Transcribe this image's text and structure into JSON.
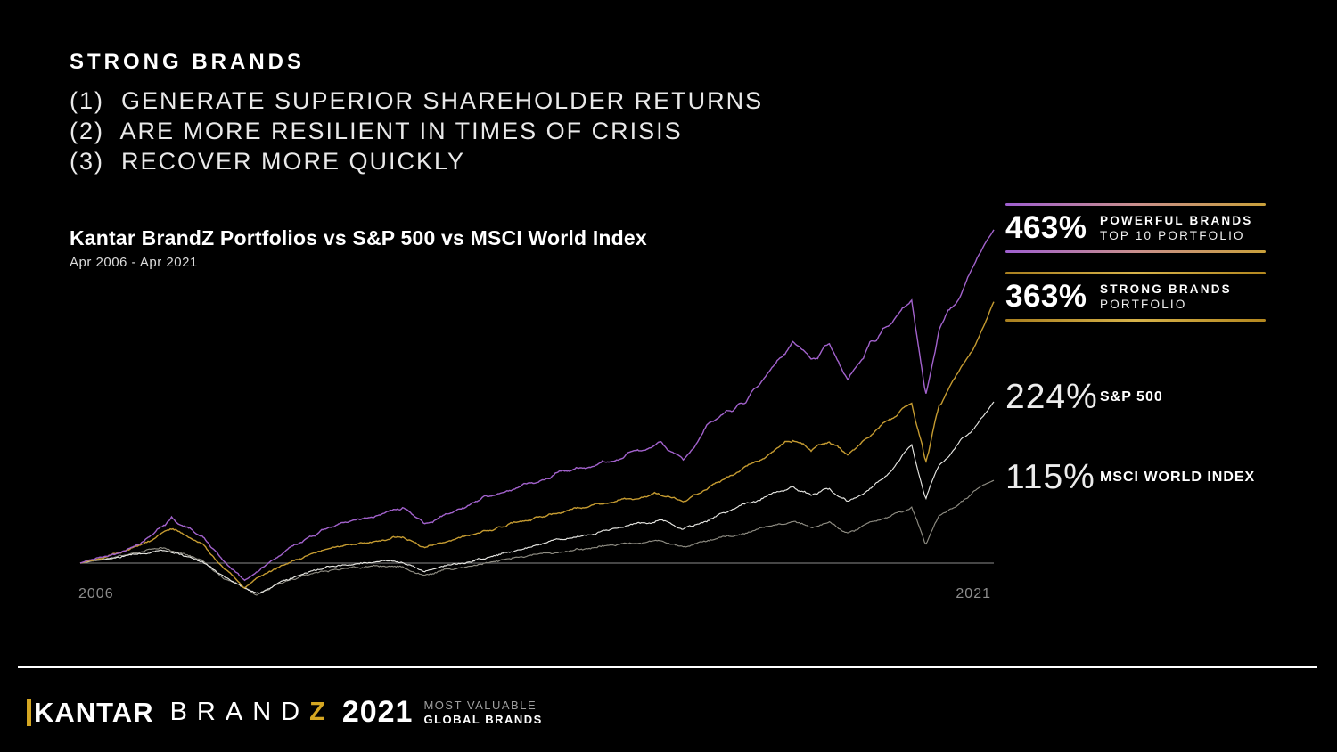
{
  "header": {
    "title": "STRONG BRANDS",
    "points": [
      "(1)  GENERATE SUPERIOR SHAREHOLDER RETURNS",
      "(2)  ARE MORE RESILIENT IN TIMES OF CRISIS",
      "(3)  RECOVER MORE QUICKLY"
    ]
  },
  "chart": {
    "title": "Kantar BrandZ Portfolios vs S&P 500 vs MSCI World Index",
    "subtitle": "Apr 2006 - Apr 2021",
    "x_start_label": "2006",
    "x_end_label": "2021"
  },
  "legend": {
    "items": [
      {
        "value": "463%",
        "label_line1": "POWERFUL BRANDS",
        "label_line2": "TOP 10 PORTFOLIO",
        "rule_colors": [
          "#9e5fd0",
          "#c98f8d",
          "#c9a03a"
        ]
      },
      {
        "value": "363%",
        "label_line1": "STRONG BRANDS",
        "label_line2": "PORTFOLIO",
        "rule_colors": [
          "#a97f1f",
          "#d6b24a",
          "#b3871f"
        ]
      },
      {
        "value": "224%",
        "label_line1": "S&P 500",
        "label_line2": "",
        "rule_colors": null
      },
      {
        "value": "115%",
        "label_line1": "MSCI WORLD INDEX",
        "label_line2": "",
        "rule_colors": null
      }
    ]
  },
  "footer": {
    "kantar": "KANTAR",
    "brand_letters": "BRAND",
    "brand_z": "Z",
    "year": "2021",
    "tagline_top": "MOST VALUABLE",
    "tagline_bottom": "GLOBAL BRANDS"
  },
  "colors": {
    "background": "#000000",
    "accent_gold": "#c9a03a",
    "accent_purple": "#a262cc",
    "axis_label": "#8c8c8c",
    "baseline": "#6f6f6f"
  },
  "chart_data": {
    "type": "line",
    "title": "Kantar BrandZ Portfolios vs S&P 500 vs MSCI World Index",
    "x_unit": "years since Apr 2006",
    "x_domain": [
      0,
      15
    ],
    "x_tick_labels": [
      "2006",
      "2021"
    ],
    "y_unit": "percent return since Apr 2006",
    "ylim": [
      -50,
      480
    ],
    "grid": false,
    "legend_position": "right",
    "series": [
      {
        "name": "Powerful Brands Top 10 Portfolio",
        "final_value_pct": 463,
        "color": "#a262cc",
        "points": [
          [
            0,
            0
          ],
          [
            0.3,
            8
          ],
          [
            0.6,
            15
          ],
          [
            1,
            30
          ],
          [
            1.2,
            42
          ],
          [
            1.5,
            62
          ],
          [
            1.7,
            50
          ],
          [
            2,
            38
          ],
          [
            2.35,
            5
          ],
          [
            2.7,
            -22
          ],
          [
            3,
            -5
          ],
          [
            3.5,
            25
          ],
          [
            4,
            45
          ],
          [
            4.5,
            60
          ],
          [
            5,
            72
          ],
          [
            5.3,
            77
          ],
          [
            5.65,
            55
          ],
          [
            6,
            68
          ],
          [
            6.5,
            85
          ],
          [
            7,
            100
          ],
          [
            7.5,
            113
          ],
          [
            8,
            127
          ],
          [
            8.5,
            138
          ],
          [
            9,
            148
          ],
          [
            9.5,
            165
          ],
          [
            9.9,
            143
          ],
          [
            10.35,
            197
          ],
          [
            10.9,
            220
          ],
          [
            11.7,
            312
          ],
          [
            12,
            285
          ],
          [
            12.3,
            305
          ],
          [
            12.6,
            250
          ],
          [
            13,
            305
          ],
          [
            13.3,
            330
          ],
          [
            13.65,
            376
          ],
          [
            13.88,
            240
          ],
          [
            14.1,
            330
          ],
          [
            14.4,
            370
          ],
          [
            14.6,
            398
          ],
          [
            14.8,
            430
          ],
          [
            15,
            463
          ]
        ]
      },
      {
        "name": "Strong Brands Portfolio",
        "final_value_pct": 363,
        "color": "#c59b31",
        "points": [
          [
            0,
            0
          ],
          [
            0.3,
            7
          ],
          [
            0.6,
            13
          ],
          [
            1,
            26
          ],
          [
            1.2,
            36
          ],
          [
            1.5,
            48
          ],
          [
            1.7,
            38
          ],
          [
            2,
            25
          ],
          [
            2.35,
            -8
          ],
          [
            2.7,
            -35
          ],
          [
            3,
            -15
          ],
          [
            3.5,
            5
          ],
          [
            4,
            20
          ],
          [
            4.5,
            28
          ],
          [
            5,
            34
          ],
          [
            5.3,
            36
          ],
          [
            5.65,
            20
          ],
          [
            6,
            30
          ],
          [
            6.5,
            42
          ],
          [
            7,
            52
          ],
          [
            7.5,
            62
          ],
          [
            8,
            72
          ],
          [
            8.5,
            82
          ],
          [
            9,
            90
          ],
          [
            9.5,
            100
          ],
          [
            9.9,
            85
          ],
          [
            10.35,
            105
          ],
          [
            10.9,
            135
          ],
          [
            11.7,
            175
          ],
          [
            12,
            160
          ],
          [
            12.3,
            172
          ],
          [
            12.6,
            148
          ],
          [
            13,
            178
          ],
          [
            13.3,
            198
          ],
          [
            13.65,
            228
          ],
          [
            13.88,
            142
          ],
          [
            14.1,
            225
          ],
          [
            14.4,
            265
          ],
          [
            14.6,
            295
          ],
          [
            14.8,
            330
          ],
          [
            15,
            363
          ]
        ]
      },
      {
        "name": "S&P 500",
        "final_value_pct": 224,
        "color": "#e6e6e2",
        "points": [
          [
            0,
            0
          ],
          [
            0.3,
            4
          ],
          [
            0.6,
            8
          ],
          [
            1,
            13
          ],
          [
            1.3,
            18
          ],
          [
            1.6,
            14
          ],
          [
            2,
            2
          ],
          [
            2.35,
            -20
          ],
          [
            2.9,
            -43
          ],
          [
            3.2,
            -30
          ],
          [
            3.5,
            -20
          ],
          [
            4,
            -8
          ],
          [
            4.5,
            -2
          ],
          [
            5,
            2
          ],
          [
            5.3,
            0
          ],
          [
            5.65,
            -13
          ],
          [
            6,
            -6
          ],
          [
            6.5,
            4
          ],
          [
            7,
            14
          ],
          [
            7.5,
            24
          ],
          [
            8,
            34
          ],
          [
            8.5,
            44
          ],
          [
            9,
            52
          ],
          [
            9.5,
            58
          ],
          [
            9.9,
            47
          ],
          [
            10.35,
            64
          ],
          [
            10.9,
            80
          ],
          [
            11.7,
            102
          ],
          [
            12,
            94
          ],
          [
            12.3,
            102
          ],
          [
            12.6,
            85
          ],
          [
            13,
            105
          ],
          [
            13.3,
            122
          ],
          [
            13.65,
            160
          ],
          [
            13.88,
            87
          ],
          [
            14.1,
            135
          ],
          [
            14.4,
            165
          ],
          [
            14.6,
            185
          ],
          [
            14.8,
            205
          ],
          [
            15,
            224
          ]
        ]
      },
      {
        "name": "MSCI World Index",
        "final_value_pct": 115,
        "color": "#8f8d83",
        "points": [
          [
            0,
            0
          ],
          [
            0.3,
            5
          ],
          [
            0.6,
            10
          ],
          [
            1,
            16
          ],
          [
            1.3,
            22
          ],
          [
            1.6,
            17
          ],
          [
            2,
            4
          ],
          [
            2.35,
            -20
          ],
          [
            2.9,
            -45
          ],
          [
            3.2,
            -33
          ],
          [
            3.5,
            -24
          ],
          [
            4,
            -13
          ],
          [
            4.5,
            -7
          ],
          [
            5,
            -3
          ],
          [
            5.3,
            -6
          ],
          [
            5.65,
            -17
          ],
          [
            6,
            -11
          ],
          [
            6.5,
            -3
          ],
          [
            7,
            5
          ],
          [
            7.5,
            11
          ],
          [
            8,
            17
          ],
          [
            8.5,
            22
          ],
          [
            9,
            26
          ],
          [
            9.5,
            30
          ],
          [
            9.9,
            21
          ],
          [
            10.35,
            32
          ],
          [
            10.9,
            42
          ],
          [
            11.7,
            56
          ],
          [
            12,
            50
          ],
          [
            12.3,
            56
          ],
          [
            12.6,
            44
          ],
          [
            13,
            58
          ],
          [
            13.3,
            68
          ],
          [
            13.65,
            79
          ],
          [
            13.88,
            25
          ],
          [
            14.1,
            68
          ],
          [
            14.5,
            88
          ],
          [
            14.8,
            105
          ],
          [
            15,
            115
          ]
        ]
      }
    ]
  }
}
